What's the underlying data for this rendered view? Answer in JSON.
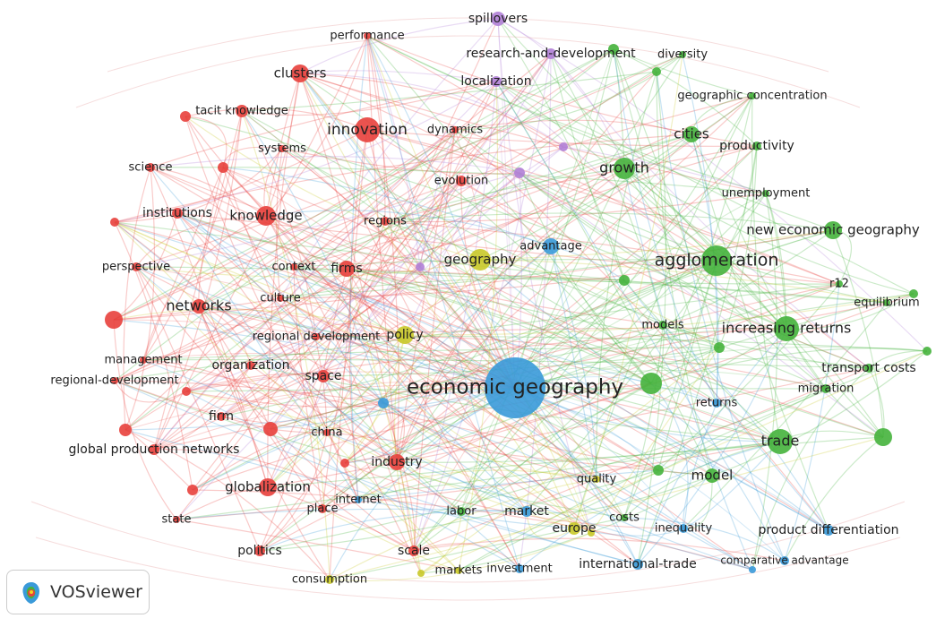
{
  "nodes": [
    {
      "label": "performance",
      "color": "#e8403c"
    },
    {
      "label": "clusters",
      "color": "#e8403c"
    },
    {
      "label": "tacit knowledge",
      "color": "#e8403c"
    },
    {
      "label": "innovation",
      "color": "#e8403c"
    },
    {
      "label": "systems",
      "color": "#e8403c"
    },
    {
      "label": "science",
      "color": "#e8403c"
    },
    {
      "label": "institutions",
      "color": "#e8403c"
    },
    {
      "label": "knowledge",
      "color": "#e8403c"
    },
    {
      "label": "regions",
      "color": "#e8403c"
    },
    {
      "label": "perspective",
      "color": "#e8403c"
    },
    {
      "label": "context",
      "color": "#e8403c"
    },
    {
      "label": "firms",
      "color": "#e8403c"
    },
    {
      "label": "culture",
      "color": "#e8403c"
    },
    {
      "label": "networks",
      "color": "#e8403c"
    },
    {
      "label": "regional development",
      "color": "#e8403c"
    },
    {
      "label": "management",
      "color": "#e8403c"
    },
    {
      "label": "organization",
      "color": "#e8403c"
    },
    {
      "label": "regional-development",
      "color": "#e8403c"
    },
    {
      "label": "space",
      "color": "#e8403c"
    },
    {
      "label": "firm",
      "color": "#e8403c"
    },
    {
      "label": "china",
      "color": "#e8403c"
    },
    {
      "label": "global production networks",
      "color": "#e8403c"
    },
    {
      "label": "industry",
      "color": "#e8403c"
    },
    {
      "label": "globalization",
      "color": "#e8403c"
    },
    {
      "label": "place",
      "color": "#e8403c"
    },
    {
      "label": "state",
      "color": "#e8403c"
    },
    {
      "label": "politics",
      "color": "#e8403c"
    },
    {
      "label": "scale",
      "color": "#e8403c"
    },
    {
      "label": "dynamics",
      "color": "#e8403c"
    },
    {
      "label": "evolution",
      "color": "#e8403c"
    },
    {
      "label": "spillovers",
      "color": "#b07fd6"
    },
    {
      "label": "research-and-development",
      "color": "#b07fd6"
    },
    {
      "label": "localization",
      "color": "#b07fd6"
    },
    {
      "label": "diversity",
      "color": "#45b33c"
    },
    {
      "label": "geographic concentration",
      "color": "#45b33c"
    },
    {
      "label": "cities",
      "color": "#45b33c"
    },
    {
      "label": "growth",
      "color": "#45b33c"
    },
    {
      "label": "productivity",
      "color": "#45b33c"
    },
    {
      "label": "unemployment",
      "color": "#45b33c"
    },
    {
      "label": "new economic geography",
      "color": "#45b33c"
    },
    {
      "label": "agglomeration",
      "color": "#45b33c"
    },
    {
      "label": "r12",
      "color": "#45b33c"
    },
    {
      "label": "equilibrium",
      "color": "#45b33c"
    },
    {
      "label": "models",
      "color": "#45b33c"
    },
    {
      "label": "increasing returns",
      "color": "#45b33c"
    },
    {
      "label": "transport costs",
      "color": "#45b33c"
    },
    {
      "label": "migration",
      "color": "#45b33c"
    },
    {
      "label": "trade",
      "color": "#45b33c"
    },
    {
      "label": "model",
      "color": "#45b33c"
    },
    {
      "label": "labor",
      "color": "#45b33c"
    },
    {
      "label": "costs",
      "color": "#45b33c"
    },
    {
      "label": "geography",
      "color": "#c9c929"
    },
    {
      "label": "policy",
      "color": "#c9c929"
    },
    {
      "label": "quality",
      "color": "#c9c929"
    },
    {
      "label": "europe",
      "color": "#c9c929"
    },
    {
      "label": "consumption",
      "color": "#c9c929"
    },
    {
      "label": "markets",
      "color": "#c9c929"
    },
    {
      "label": "advantage",
      "color": "#3a9ad9"
    },
    {
      "label": "economic geography",
      "color": "#3a9ad9"
    },
    {
      "label": "returns",
      "color": "#3a9ad9"
    },
    {
      "label": "internet",
      "color": "#3a9ad9"
    },
    {
      "label": "market",
      "color": "#3a9ad9"
    },
    {
      "label": "inequality",
      "color": "#3a9ad9"
    },
    {
      "label": "product differentiation",
      "color": "#3a9ad9"
    },
    {
      "label": "investment",
      "color": "#3a9ad9"
    },
    {
      "label": "international-trade",
      "color": "#3a9ad9"
    },
    {
      "label": "comparative advantage",
      "color": "#3a9ad9"
    }
  ],
  "logo": "VOSviewer"
}
